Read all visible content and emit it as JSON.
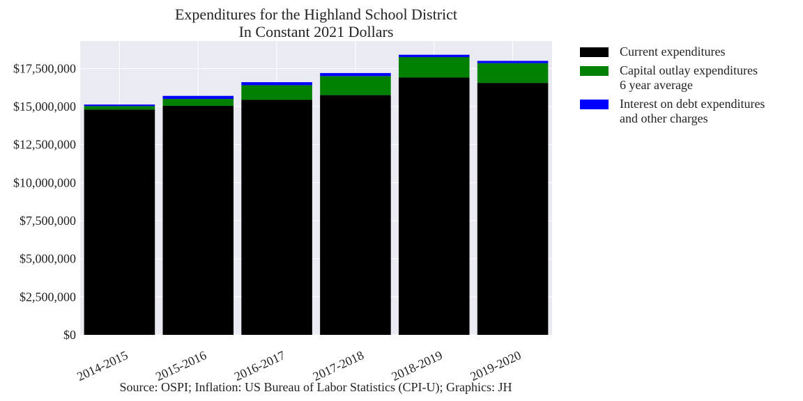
{
  "chart_data": {
    "type": "bar",
    "stacked": true,
    "title": "Expenditures for the Highland School District",
    "subtitle": "In Constant 2021 Dollars",
    "xlabel": "",
    "ylabel": "",
    "ylim": [
      0,
      19300000
    ],
    "yticks": [
      0,
      2500000,
      5000000,
      7500000,
      10000000,
      12500000,
      15000000,
      17500000
    ],
    "ytick_labels": [
      "$0",
      "$2,500,000",
      "$5,000,000",
      "$7,500,000",
      "$10,000,000",
      "$12,500,000",
      "$15,000,000",
      "$17,500,000"
    ],
    "categories": [
      "2014-2015",
      "2015-2016",
      "2016-2017",
      "2017-2018",
      "2018-2019",
      "2019-2020"
    ],
    "series": [
      {
        "name": "Current expenditures",
        "color": "#000000",
        "values": [
          14800000,
          15050000,
          15450000,
          15750000,
          16900000,
          16550000
        ]
      },
      {
        "name": "Capital outlay expenditures\n6 year average",
        "color": "#008000",
        "values": [
          230000,
          450000,
          950000,
          1250000,
          1350000,
          1300000
        ]
      },
      {
        "name": "Interest on debt expenditures\nand other charges",
        "color": "#0000ff",
        "values": [
          100000,
          200000,
          200000,
          200000,
          150000,
          150000
        ]
      }
    ],
    "grid": true,
    "legend_position": "outside-right",
    "source_note": "Source: OSPI; Inflation: US Bureau of Labor Statistics (CPI-U); Graphics: JH"
  }
}
